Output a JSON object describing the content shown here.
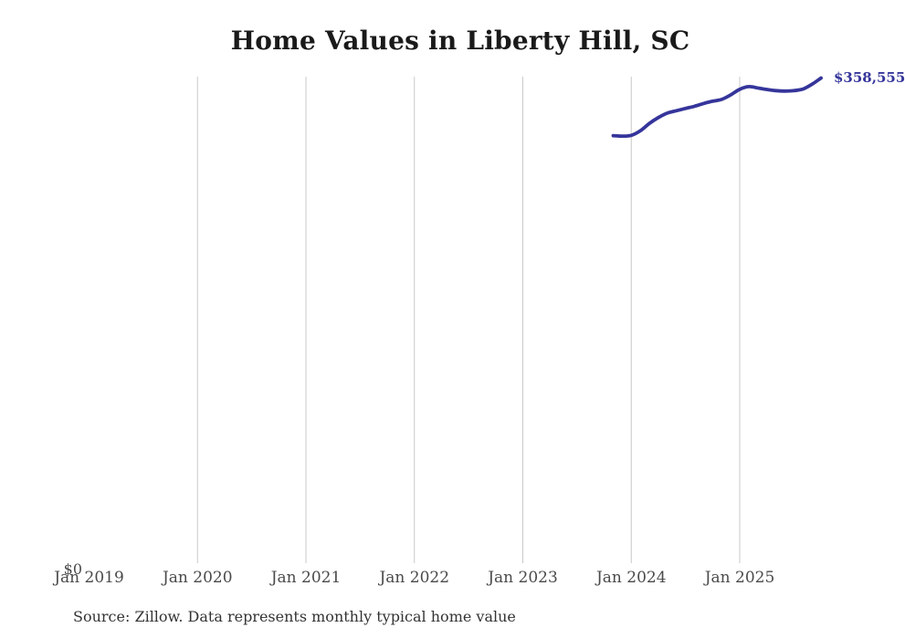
{
  "page": {
    "title": "Home Values in Liberty Hill, SC",
    "source_note": "Source: Zillow. Data represents monthly typical home value"
  },
  "chart_data": {
    "type": "line",
    "title": "Home Values in Liberty Hill, SC",
    "xlabel": "",
    "ylabel": "",
    "x_tick_labels": [
      "Jan 2019",
      "Jan 2020",
      "Jan 2021",
      "Jan 2022",
      "Jan 2023",
      "Jan 2024",
      "Jan 2025"
    ],
    "y_zero_label": "$0",
    "end_value_label": "$358,555",
    "ylim": [
      0,
      359600
    ],
    "grid": "vertical-only",
    "legend": "none",
    "colors": {
      "line": "#35359b",
      "gridline": "#c9c9c9",
      "title_text": "#1a1a1a",
      "axis_text": "#4a4a4a",
      "source_text": "#333333"
    },
    "series": [
      {
        "name": "Monthly typical home value",
        "points": [
          {
            "month": "Nov 2023",
            "value": 316300
          },
          {
            "month": "Dec 2023",
            "value": 316000
          },
          {
            "month": "Jan 2024",
            "value": 316600
          },
          {
            "month": "Feb 2024",
            "value": 319900
          },
          {
            "month": "Mar 2024",
            "value": 325300
          },
          {
            "month": "Apr 2024",
            "value": 329600
          },
          {
            "month": "May 2024",
            "value": 332900
          },
          {
            "month": "Jun 2024",
            "value": 334600
          },
          {
            "month": "Jul 2024",
            "value": 336300
          },
          {
            "month": "Aug 2024",
            "value": 337900
          },
          {
            "month": "Sep 2024",
            "value": 339900
          },
          {
            "month": "Oct 2024",
            "value": 341600
          },
          {
            "month": "Nov 2024",
            "value": 342900
          },
          {
            "month": "Dec 2024",
            "value": 346200
          },
          {
            "month": "Jan 2025",
            "value": 350300
          },
          {
            "month": "Feb 2025",
            "value": 352300
          },
          {
            "month": "Mar 2025",
            "value": 351300
          },
          {
            "month": "Apr 2025",
            "value": 350200
          },
          {
            "month": "May 2025",
            "value": 349300
          },
          {
            "month": "Jun 2025",
            "value": 349000
          },
          {
            "month": "Jul 2025",
            "value": 349300
          },
          {
            "month": "Aug 2025",
            "value": 350500
          },
          {
            "month": "Sep 2025",
            "value": 354000
          },
          {
            "month": "Oct 2025",
            "value": 358555
          }
        ]
      }
    ]
  }
}
